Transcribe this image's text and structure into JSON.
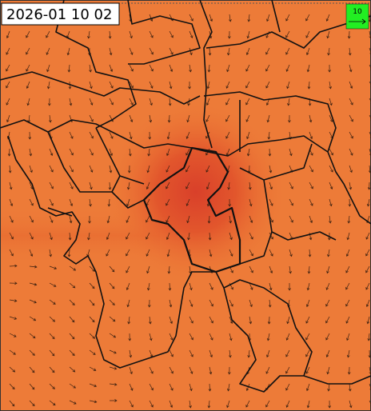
{
  "timestamp": "2026-01 10 02",
  "legend": {
    "label": "10"
  }
}
